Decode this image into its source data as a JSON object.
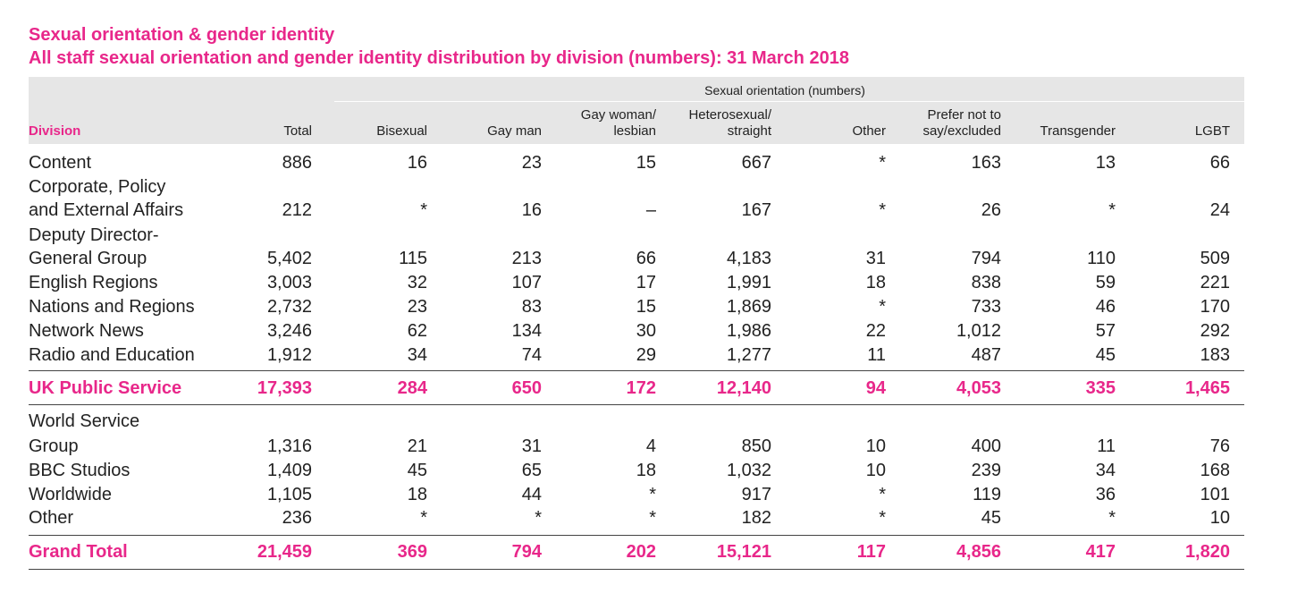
{
  "title": "Sexual orientation & gender identity",
  "subtitle": "All staff sexual orientation and gender identity distribution by division (numbers): 31 March 2018",
  "group_header": "Sexual orientation (numbers)",
  "columns": {
    "division": "Division",
    "total": "Total",
    "bisexual": "Bisexual",
    "gay_man": "Gay man",
    "gay_woman_1": "Gay woman/",
    "gay_woman_2": "lesbian",
    "hetero_1": "Heterosexual/",
    "hetero_2": "straight",
    "other": "Other",
    "prefer_1": "Prefer not to",
    "prefer_2": "say/excluded",
    "transgender": "Transgender",
    "lgbt": "LGBT"
  },
  "rows": [
    {
      "name": "Content",
      "values": [
        "886",
        "16",
        "23",
        "15",
        "667",
        "*",
        "163",
        "13",
        "66"
      ]
    },
    {
      "name1": "Corporate, Policy",
      "name": "and External Affairs",
      "values": [
        "212",
        "*",
        "16",
        "–",
        "167",
        "*",
        "26",
        "*",
        "24"
      ]
    },
    {
      "name1": "Deputy Director-",
      "name": "General Group",
      "values": [
        "5,402",
        "115",
        "213",
        "66",
        "4,183",
        "31",
        "794",
        "110",
        "509"
      ]
    },
    {
      "name": "English Regions",
      "values": [
        "3,003",
        "32",
        "107",
        "17",
        "1,991",
        "18",
        "838",
        "59",
        "221"
      ]
    },
    {
      "name": "Nations and Regions",
      "values": [
        "2,732",
        "23",
        "83",
        "15",
        "1,869",
        "*",
        "733",
        "46",
        "170"
      ]
    },
    {
      "name": "Network News",
      "values": [
        "3,246",
        "62",
        "134",
        "30",
        "1,986",
        "22",
        "1,012",
        "57",
        "292"
      ]
    },
    {
      "name": "Radio and Education",
      "values": [
        "1,912",
        "34",
        "74",
        "29",
        "1,277",
        "11",
        "487",
        "45",
        "183"
      ]
    }
  ],
  "uk_total": {
    "name": "UK Public Service",
    "values": [
      "17,393",
      "284",
      "650",
      "172",
      "12,140",
      "94",
      "4,053",
      "335",
      "1,465"
    ]
  },
  "world_service_label": "World Service",
  "rows2": [
    {
      "name": "Group",
      "values": [
        "1,316",
        "21",
        "31",
        "4",
        "850",
        "10",
        "400",
        "11",
        "76"
      ]
    },
    {
      "name": "BBC Studios",
      "values": [
        "1,409",
        "45",
        "65",
        "18",
        "1,032",
        "10",
        "239",
        "34",
        "168"
      ]
    },
    {
      "name": "Worldwide",
      "values": [
        "1,105",
        "18",
        "44",
        "*",
        "917",
        "*",
        "119",
        "36",
        "101"
      ]
    },
    {
      "name": "Other",
      "values": [
        "236",
        "*",
        "*",
        "*",
        "182",
        "*",
        "45",
        "*",
        "10"
      ]
    }
  ],
  "grand_total": {
    "name": "Grand Total",
    "values": [
      "21,459",
      "369",
      "794",
      "202",
      "15,121",
      "117",
      "4,856",
      "417",
      "1,820"
    ]
  },
  "colors": {
    "accent": "#e8278a",
    "header_band": "#e6e6e6"
  }
}
